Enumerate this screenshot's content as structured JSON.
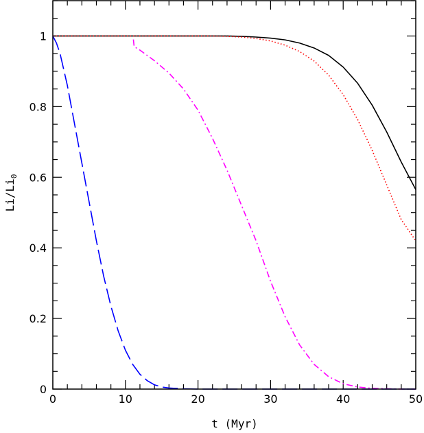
{
  "chart_data": {
    "type": "line",
    "xlabel": "t (Myr)",
    "ylabel_main": "Li/Li",
    "ylabel_sub": "0",
    "xlim": [
      0,
      50
    ],
    "ylim": [
      0,
      1.1
    ],
    "xticks": [
      0,
      10,
      20,
      30,
      40,
      50
    ],
    "xtick_labels": [
      "0",
      "10",
      "20",
      "30",
      "40",
      "50"
    ],
    "yticks": [
      0,
      0.2,
      0.4,
      0.6,
      0.8,
      1
    ],
    "ytick_labels": [
      "0",
      "0.2",
      "0.4",
      "0.6",
      "0.8",
      "1"
    ],
    "grid": false,
    "series": [
      {
        "color": "#000000",
        "style": "solid",
        "x": [
          0,
          5,
          10,
          15,
          20,
          22,
          24,
          26,
          28,
          30,
          32,
          34,
          36,
          38,
          40,
          42,
          44,
          46,
          48,
          50
        ],
        "y": [
          1.0,
          1.0,
          1.0,
          1.0,
          1.0,
          1.0,
          1.0,
          0.999,
          0.997,
          0.994,
          0.989,
          0.98,
          0.966,
          0.945,
          0.912,
          0.866,
          0.804,
          0.728,
          0.643,
          0.565
        ]
      },
      {
        "color": "#ff0000",
        "style": "dotted",
        "x": [
          0,
          5,
          10,
          15,
          20,
          22,
          24,
          26,
          28,
          30,
          32,
          34,
          36,
          38,
          40,
          42,
          44,
          46,
          48,
          50
        ],
        "y": [
          1.0,
          1.0,
          1.0,
          1.0,
          1.0,
          1.0,
          0.999,
          0.997,
          0.993,
          0.986,
          0.974,
          0.956,
          0.929,
          0.889,
          0.834,
          0.763,
          0.676,
          0.578,
          0.48,
          0.42
        ]
      },
      {
        "color": "#ff00ff",
        "style": "dash-dot",
        "x": [
          11.1,
          11.2,
          12,
          14,
          16,
          18,
          20,
          22,
          24,
          26,
          28,
          30,
          32,
          34,
          36,
          38,
          40,
          42,
          44,
          46,
          48,
          50
        ],
        "y": [
          0.99,
          0.97,
          0.96,
          0.93,
          0.895,
          0.85,
          0.79,
          0.71,
          0.62,
          0.52,
          0.42,
          0.305,
          0.205,
          0.125,
          0.07,
          0.035,
          0.015,
          0.006,
          0.002,
          0.001,
          0.0,
          0.0
        ]
      },
      {
        "color": "#0000ff",
        "style": "long-dash",
        "x": [
          0,
          0.5,
          1,
          2,
          3,
          4,
          5,
          6,
          7,
          8,
          9,
          10,
          11,
          12,
          13,
          14,
          15,
          16,
          18,
          20,
          25,
          30,
          40,
          50
        ],
        "y": [
          1.0,
          0.98,
          0.95,
          0.86,
          0.75,
          0.64,
          0.53,
          0.42,
          0.32,
          0.235,
          0.165,
          0.11,
          0.07,
          0.042,
          0.024,
          0.012,
          0.006,
          0.003,
          0.001,
          0.0,
          0.0,
          0.0,
          0.0,
          0.0
        ]
      }
    ]
  }
}
